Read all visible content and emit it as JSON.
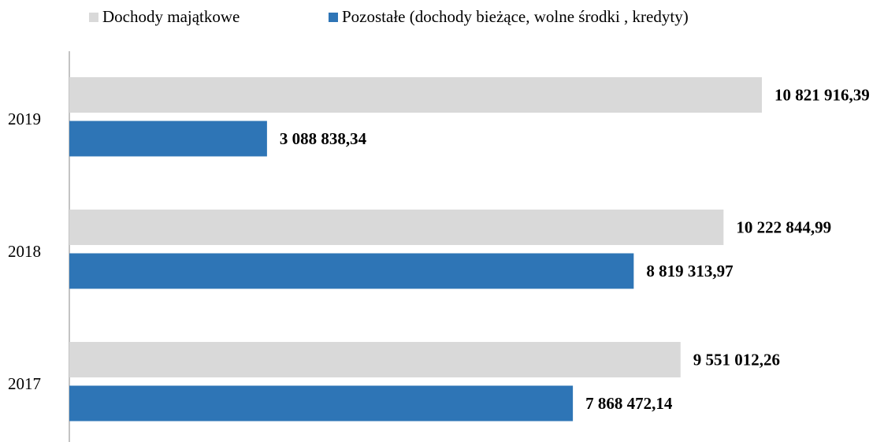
{
  "chart_data": {
    "type": "bar",
    "orientation": "horizontal",
    "categories": [
      "2019",
      "2018",
      "2017"
    ],
    "series": [
      {
        "name": "Dochody majątkowe",
        "color": "#d9d9d9",
        "values": [
          10821916.39,
          10222844.99,
          9551012.26
        ],
        "value_labels": [
          "10 821 916,39",
          "10 222 844,99",
          "9 551 012,26"
        ]
      },
      {
        "name": "Pozostałe (dochody bieżące, wolne środki , kredyty)",
        "color": "#2e75b6",
        "values": [
          3088838.34,
          8819313.97,
          7868472.14
        ],
        "value_labels": [
          "3 088 838,34",
          "8 819 313,97",
          "7 868 472,14"
        ]
      }
    ],
    "legend": "top"
  }
}
